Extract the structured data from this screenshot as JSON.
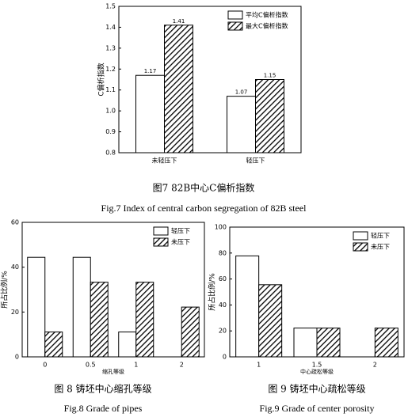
{
  "chart_data": [
    {
      "type": "bar",
      "ylabel": "C偏析指数",
      "categories": [
        "未轻压下",
        "轻压下"
      ],
      "series": [
        {
          "name": "平均C偏析指数",
          "color": "#ffffff",
          "hatch": false,
          "values": [
            1.17,
            1.07
          ]
        },
        {
          "name": "最大C偏析指数",
          "color": "#000000",
          "hatch": true,
          "values": [
            1.41,
            1.15
          ]
        }
      ],
      "ylim": [
        0.8,
        1.5
      ],
      "yticks": [
        0.8,
        0.9,
        {
          "value": 1,
          "label": "1.0"
        },
        1.1,
        1.2,
        1.3,
        1.4,
        1.5
      ],
      "data_labels": true,
      "legend": "upper right",
      "caption": "图7   82B中心C偏析指数",
      "caption_en": "Fig.7  Index of central carbon segregation of 82B steel"
    },
    {
      "type": "bar",
      "ylabel": "所占比例/%",
      "xlabel": "缩孔等级",
      "categories": [
        "0",
        "0.5",
        "1",
        "2"
      ],
      "series": [
        {
          "name": "轻压下",
          "color": "#ffffff",
          "hatch": false,
          "values": [
            44.4,
            44.4,
            11.1,
            0
          ]
        },
        {
          "name": "未压下",
          "color": "#000000",
          "hatch": true,
          "values": [
            11.1,
            33.3,
            33.3,
            22.2
          ]
        }
      ],
      "ylim": [
        0,
        60
      ],
      "yticks": [
        0,
        20,
        40,
        60
      ],
      "data_labels": false,
      "legend": "upper right",
      "caption": "图 8  铸坯中心缩孔等级",
      "caption_en": "Fig.8  Grade of pipes"
    },
    {
      "type": "bar",
      "ylabel": "所占比例/%",
      "xlabel": "中心疏松等级",
      "categories": [
        "1",
        "1.5",
        "2"
      ],
      "series": [
        {
          "name": "轻压下",
          "color": "#ffffff",
          "hatch": false,
          "values": [
            77.8,
            22.2,
            0
          ]
        },
        {
          "name": "未压下",
          "color": "#000000",
          "hatch": true,
          "values": [
            55.6,
            22.2,
            22.2
          ]
        }
      ],
      "ylim": [
        0,
        100
      ],
      "yticks": [
        0,
        20,
        40,
        60,
        80,
        100
      ],
      "data_labels": false,
      "legend": "upper right",
      "caption": "图 9  铸坯中心疏松等级",
      "caption_en": "Fig.9    Grade of center porosity"
    }
  ]
}
